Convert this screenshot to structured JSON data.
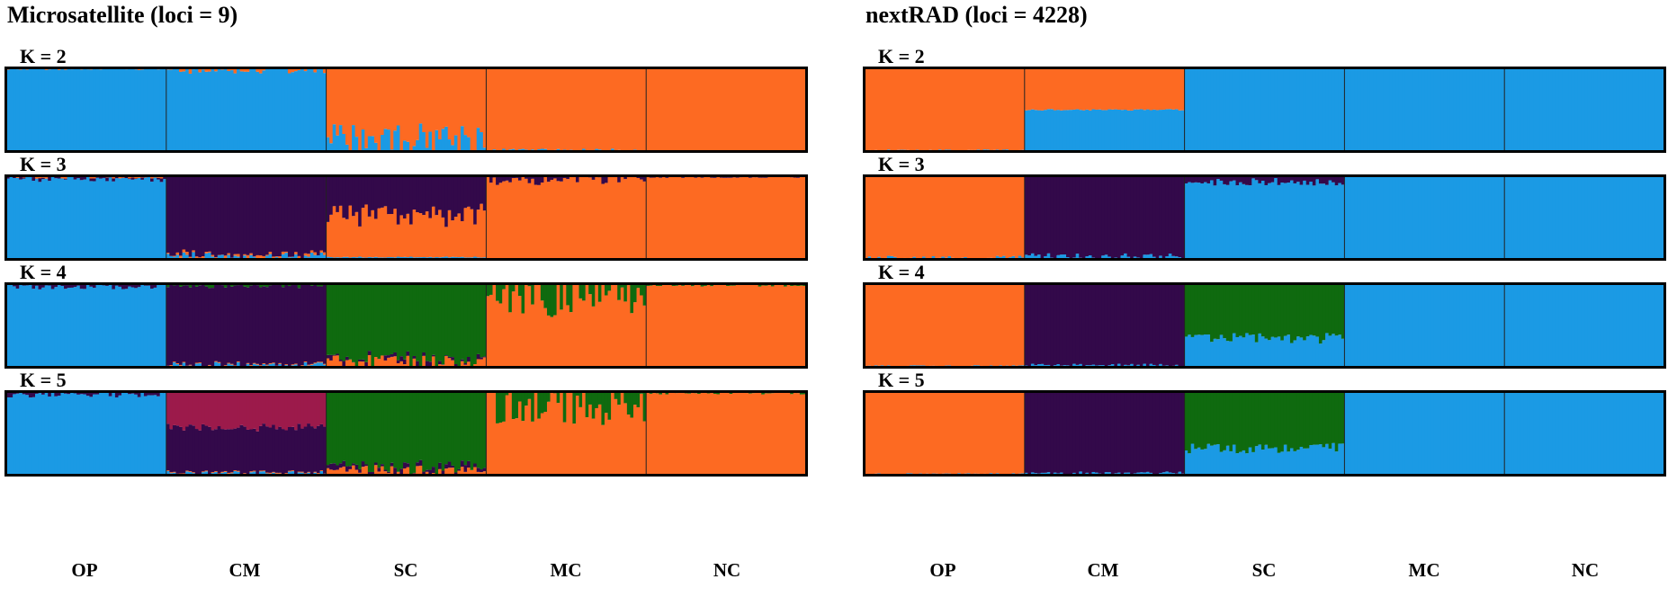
{
  "colors": {
    "blue": "#1b9ae4",
    "orange": "#fd6a22",
    "purple": "#33094a",
    "green": "#0f6a0f",
    "magenta": "#9c1a4b"
  },
  "chart_data": [
    {
      "type": "bar",
      "subtype": "stacked-admixture",
      "title": "Microsatellite (loci = 9)",
      "populations": [
        "OP",
        "CM",
        "SC",
        "MC",
        "NC"
      ],
      "individuals_per_population": 50,
      "ylim": [
        0,
        1
      ],
      "rows": [
        {
          "label": "K = 2",
          "populations": [
            {
              "name": "OP",
              "mean": [
                [
                  "blue",
                  0.99
                ],
                [
                  "orange",
                  0.01
                ]
              ],
              "noise": {
                "orange": 0.01
              }
            },
            {
              "name": "CM",
              "mean": [
                [
                  "blue",
                  0.98
                ],
                [
                  "orange",
                  0.02
                ]
              ],
              "noise": {
                "orange": 0.05
              }
            },
            {
              "name": "SC",
              "mean": [
                [
                  "blue",
                  0.18
                ],
                [
                  "orange",
                  0.82
                ]
              ],
              "noise": {
                "blue": 0.25
              }
            },
            {
              "name": "MC",
              "mean": [
                [
                  "blue",
                  0.01
                ],
                [
                  "orange",
                  0.99
                ]
              ],
              "noise": {
                "blue": 0.02
              }
            },
            {
              "name": "NC",
              "mean": [
                [
                  "orange",
                  1.0
                ]
              ],
              "noise": {}
            }
          ]
        },
        {
          "label": "K = 3",
          "populations": [
            {
              "name": "OP",
              "mean": [
                [
                  "blue",
                  0.97
                ],
                [
                  "purple",
                  0.02
                ],
                [
                  "orange",
                  0.01
                ]
              ],
              "noise": {
                "purple": 0.03,
                "orange": 0.02
              }
            },
            {
              "name": "CM",
              "mean": [
                [
                  "blue",
                  0.04
                ],
                [
                  "orange",
                  0.02
                ],
                [
                  "purple",
                  0.94
                ]
              ],
              "noise": {
                "blue": 0.05,
                "orange": 0.02
              }
            },
            {
              "name": "SC",
              "mean": [
                [
                  "blue",
                  0.02
                ],
                [
                  "orange",
                  0.55
                ],
                [
                  "purple",
                  0.43
                ]
              ],
              "noise": {
                "orange": 0.3
              }
            },
            {
              "name": "MC",
              "mean": [
                [
                  "orange",
                  0.96
                ],
                [
                  "purple",
                  0.04
                ]
              ],
              "noise": {
                "purple": 0.08
              }
            },
            {
              "name": "NC",
              "mean": [
                [
                  "orange",
                  0.99
                ],
                [
                  "purple",
                  0.01
                ]
              ],
              "noise": {
                "purple": 0.01
              }
            }
          ]
        },
        {
          "label": "K = 4",
          "populations": [
            {
              "name": "OP",
              "mean": [
                [
                  "blue",
                  0.97
                ],
                [
                  "purple",
                  0.02
                ],
                [
                  "green",
                  0.01
                ]
              ],
              "noise": {
                "purple": 0.04
              }
            },
            {
              "name": "CM",
              "mean": [
                [
                  "blue",
                  0.02
                ],
                [
                  "orange",
                  0.01
                ],
                [
                  "purple",
                  0.95
                ],
                [
                  "green",
                  0.02
                ]
              ],
              "noise": {
                "blue": 0.04,
                "green": 0.03
              }
            },
            {
              "name": "SC",
              "mean": [
                [
                  "orange",
                  0.06
                ],
                [
                  "purple",
                  0.03
                ],
                [
                  "green",
                  0.91
                ]
              ],
              "noise": {
                "orange": 0.1,
                "purple": 0.04
              }
            },
            {
              "name": "MC",
              "mean": [
                [
                  "orange",
                  0.84
                ],
                [
                  "green",
                  0.16
                ]
              ],
              "noise": {
                "green": 0.4
              }
            },
            {
              "name": "NC",
              "mean": [
                [
                  "orange",
                  0.99
                ],
                [
                  "green",
                  0.01
                ]
              ],
              "noise": {
                "green": 0.02
              }
            }
          ]
        },
        {
          "label": "K = 5",
          "populations": [
            {
              "name": "OP",
              "mean": [
                [
                  "blue",
                  0.97
                ],
                [
                  "purple",
                  0.02
                ],
                [
                  "magenta",
                  0.01
                ]
              ],
              "noise": {
                "purple": 0.04
              }
            },
            {
              "name": "CM",
              "mean": [
                [
                  "blue",
                  0.02
                ],
                [
                  "orange",
                  0.01
                ],
                [
                  "purple",
                  0.55
                ],
                [
                  "magenta",
                  0.42
                ]
              ],
              "noise": {
                "purple": 0.1,
                "blue": 0.03
              }
            },
            {
              "name": "SC",
              "mean": [
                [
                  "orange",
                  0.05
                ],
                [
                  "purple",
                  0.04
                ],
                [
                  "green",
                  0.91
                ]
              ],
              "noise": {
                "orange": 0.08,
                "purple": 0.05
              }
            },
            {
              "name": "MC",
              "mean": [
                [
                  "orange",
                  0.84
                ],
                [
                  "green",
                  0.16
                ]
              ],
              "noise": {
                "green": 0.4
              }
            },
            {
              "name": "NC",
              "mean": [
                [
                  "orange",
                  0.99
                ],
                [
                  "green",
                  0.01
                ]
              ],
              "noise": {
                "green": 0.02
              }
            }
          ]
        }
      ]
    },
    {
      "type": "bar",
      "subtype": "stacked-admixture",
      "title": "nextRAD (loci = 4228)",
      "populations": [
        "OP",
        "CM",
        "SC",
        "MC",
        "NC"
      ],
      "individuals_per_population": 50,
      "ylim": [
        0,
        1
      ],
      "rows": [
        {
          "label": "K = 2",
          "populations": [
            {
              "name": "OP",
              "mean": [
                [
                  "blue",
                  0.01
                ],
                [
                  "orange",
                  0.99
                ]
              ],
              "noise": {
                "blue": 0.01
              }
            },
            {
              "name": "CM",
              "mean": [
                [
                  "blue",
                  0.5
                ],
                [
                  "orange",
                  0.5
                ]
              ],
              "noise": {
                "blue": 0.02
              }
            },
            {
              "name": "SC",
              "mean": [
                [
                  "blue",
                  1.0
                ]
              ],
              "noise": {}
            },
            {
              "name": "MC",
              "mean": [
                [
                  "blue",
                  1.0
                ]
              ],
              "noise": {}
            },
            {
              "name": "NC",
              "mean": [
                [
                  "blue",
                  1.0
                ]
              ],
              "noise": {}
            }
          ]
        },
        {
          "label": "K = 3",
          "populations": [
            {
              "name": "OP",
              "mean": [
                [
                  "blue",
                  0.02
                ],
                [
                  "orange",
                  0.98
                ]
              ],
              "noise": {
                "blue": 0.02
              }
            },
            {
              "name": "CM",
              "mean": [
                [
                  "blue",
                  0.03
                ],
                [
                  "purple",
                  0.97
                ]
              ],
              "noise": {
                "blue": 0.04
              }
            },
            {
              "name": "SC",
              "mean": [
                [
                  "blue",
                  0.93
                ],
                [
                  "purple",
                  0.07
                ]
              ],
              "noise": {
                "purple": 0.05
              }
            },
            {
              "name": "MC",
              "mean": [
                [
                  "blue",
                  0.99
                ],
                [
                  "purple",
                  0.01
                ]
              ],
              "noise": {}
            },
            {
              "name": "NC",
              "mean": [
                [
                  "blue",
                  1.0
                ]
              ],
              "noise": {}
            }
          ]
        },
        {
          "label": "K = 4",
          "populations": [
            {
              "name": "OP",
              "mean": [
                [
                  "blue",
                  0.01
                ],
                [
                  "orange",
                  0.99
                ]
              ],
              "noise": {
                "blue": 0.01
              }
            },
            {
              "name": "CM",
              "mean": [
                [
                  "blue",
                  0.02
                ],
                [
                  "purple",
                  0.98
                ]
              ],
              "noise": {
                "blue": 0.02
              }
            },
            {
              "name": "SC",
              "mean": [
                [
                  "blue",
                  0.35
                ],
                [
                  "green",
                  0.65
                ]
              ],
              "noise": {
                "blue": 0.1
              }
            },
            {
              "name": "MC",
              "mean": [
                [
                  "blue",
                  1.0
                ]
              ],
              "noise": {}
            },
            {
              "name": "NC",
              "mean": [
                [
                  "blue",
                  1.0
                ]
              ],
              "noise": {}
            }
          ]
        },
        {
          "label": "K = 5",
          "populations": [
            {
              "name": "OP",
              "mean": [
                [
                  "blue",
                  0.01
                ],
                [
                  "orange",
                  0.99
                ]
              ],
              "noise": {
                "blue": 0.01
              }
            },
            {
              "name": "CM",
              "mean": [
                [
                  "blue",
                  0.02
                ],
                [
                  "purple",
                  0.98
                ]
              ],
              "noise": {
                "blue": 0.02
              }
            },
            {
              "name": "SC",
              "mean": [
                [
                  "blue",
                  0.33
                ],
                [
                  "green",
                  0.67
                ]
              ],
              "noise": {
                "blue": 0.1
              }
            },
            {
              "name": "MC",
              "mean": [
                [
                  "blue",
                  0.99
                ],
                [
                  "magenta",
                  0.01
                ]
              ],
              "noise": {}
            },
            {
              "name": "NC",
              "mean": [
                [
                  "blue",
                  1.0
                ]
              ],
              "noise": {}
            }
          ]
        }
      ]
    }
  ]
}
